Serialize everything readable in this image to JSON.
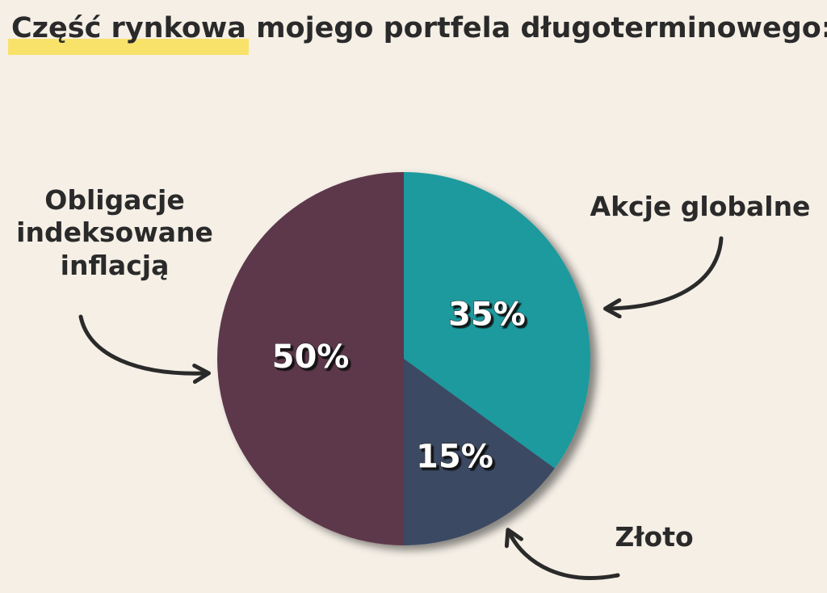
{
  "chart_data": {
    "type": "pie",
    "title": "Część rynkowa mojego portfela długoterminowego:",
    "categories": [
      "Akcje globalne",
      "Złoto",
      "Obligacje indeksowane inflacją"
    ],
    "values": [
      35,
      15,
      50
    ],
    "value_labels": [
      "35%",
      "15%",
      "50%"
    ],
    "colors": [
      "#1b9a9e",
      "#3a4a64",
      "#5d384b"
    ]
  }
}
